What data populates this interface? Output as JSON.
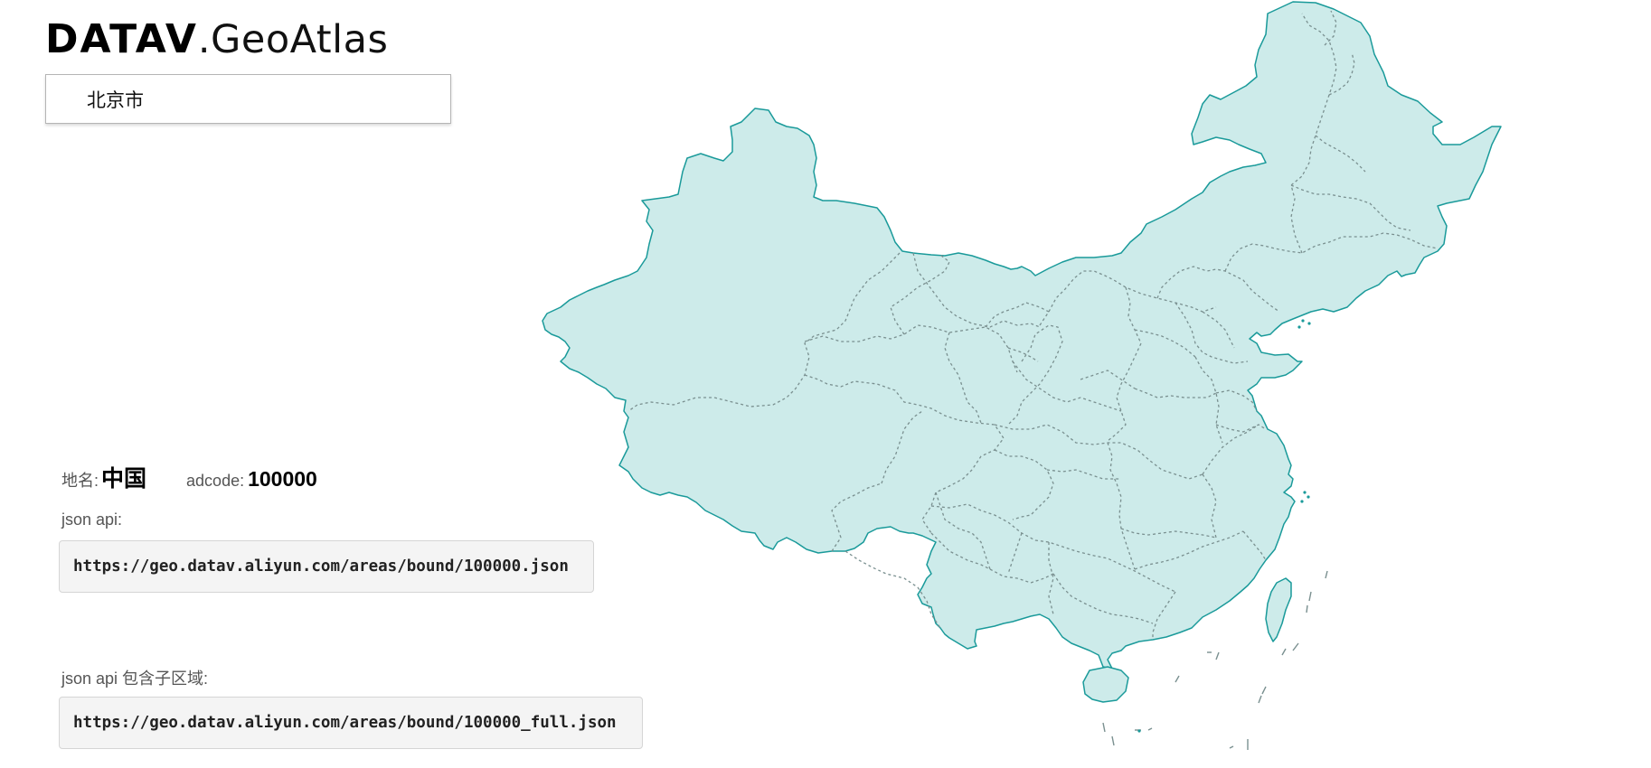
{
  "logo": {
    "bold": "DATAV",
    "light": ".GeoAtlas"
  },
  "search": {
    "value": "北京市",
    "placeholder": ""
  },
  "region": {
    "name_label": "地名:",
    "name": "中国",
    "adcode_label": "adcode:",
    "adcode": "100000"
  },
  "api": {
    "json_label": "json api:",
    "json_url": "https://geo.datav.aliyun.com/areas/bound/100000.json",
    "full_label": "json api 包含子区域:",
    "full_url": "https://geo.datav.aliyun.com/areas/bound/100000_full.json"
  },
  "map": {
    "fill_color": "#cdebea",
    "border_color": "#1a9a9a",
    "inner_border_color": "#7a9090"
  }
}
